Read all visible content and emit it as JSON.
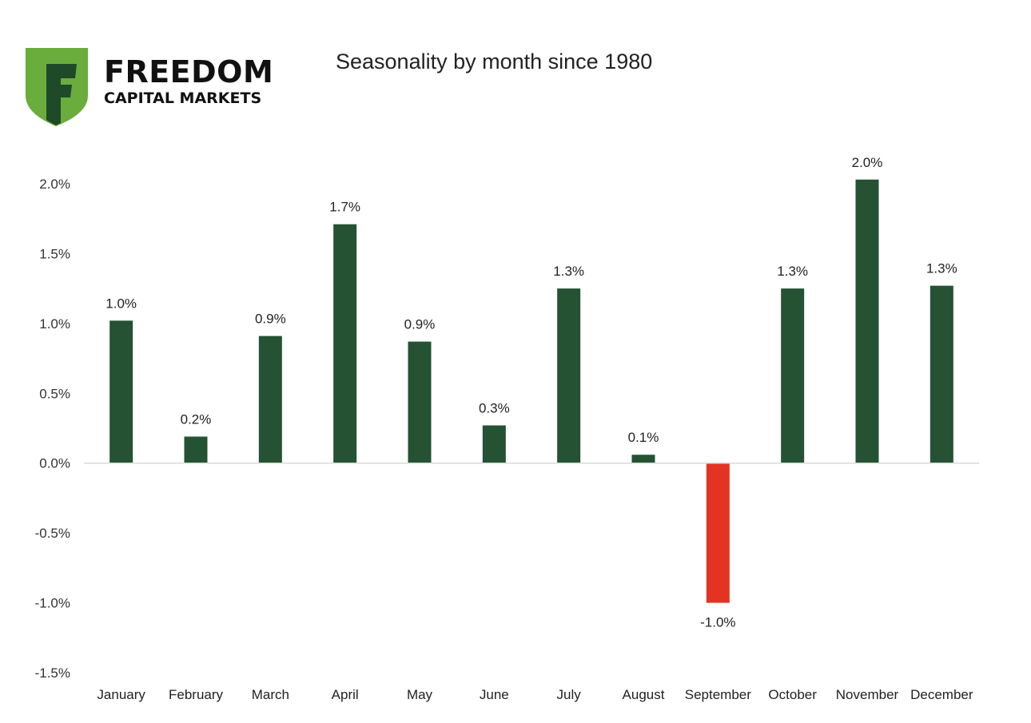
{
  "brand": {
    "name": "FREEDOM",
    "subtitle": "CAPITAL MARKETS",
    "logo_colors": {
      "light": "#6aad3d",
      "dark": "#1e4a2a"
    }
  },
  "chart_data": {
    "type": "bar",
    "title": "Seasonality by month since 1980",
    "categories": [
      "January",
      "February",
      "March",
      "April",
      "May",
      "June",
      "July",
      "August",
      "September",
      "October",
      "November",
      "December"
    ],
    "values": [
      1.02,
      0.19,
      0.91,
      1.71,
      0.87,
      0.27,
      1.25,
      0.06,
      -1.0,
      1.25,
      2.03,
      1.27
    ],
    "data_labels": [
      "1.0%",
      "0.2%",
      "0.9%",
      "1.7%",
      "0.9%",
      "0.3%",
      "1.3%",
      "0.1%",
      "-1.0%",
      "1.3%",
      "2.0%",
      "1.3%"
    ],
    "y_ticks": [
      2.0,
      1.5,
      1.0,
      0.5,
      0.0,
      -0.5,
      -1.0,
      -1.5
    ],
    "y_tick_labels": [
      "2.0%",
      "1.5%",
      "1.0%",
      "0.5%",
      "0.0%",
      "-0.5%",
      "-1.0%",
      "-1.5%"
    ],
    "ylim": [
      -1.5,
      2.0
    ],
    "xlabel": "",
    "ylabel": "",
    "grid": false,
    "colors": {
      "positive": "#245233",
      "negative": "#e23323",
      "axis": "#d9d9d9"
    }
  }
}
